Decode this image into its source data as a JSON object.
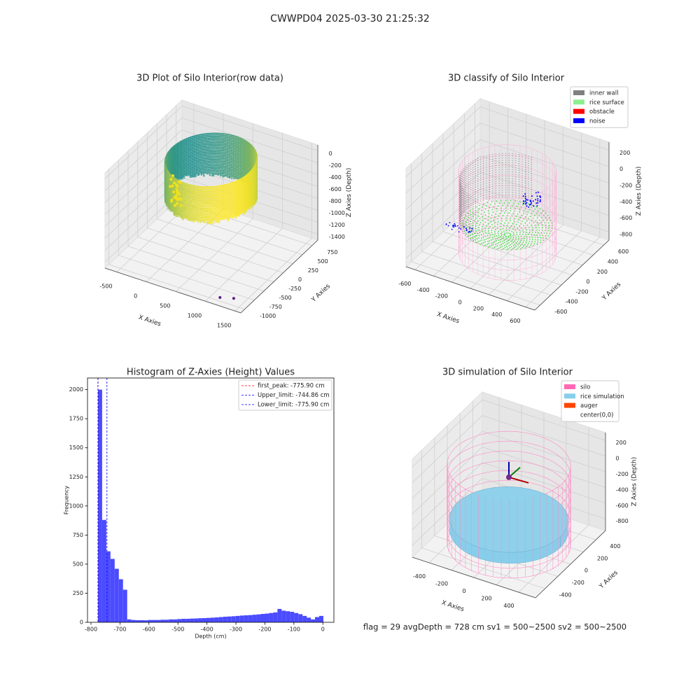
{
  "title": "CWWPD04 2025-03-30 21:25:32",
  "chart_data": [
    {
      "type": "scatter3d",
      "title": "3D Plot of Silo Interior(row data)",
      "xlabel": "X Axies",
      "ylabel": "Y Axies",
      "zlabel": "Z Axies (Depth)",
      "xlim": [
        -700,
        1600
      ],
      "ylim": [
        -1100,
        900
      ],
      "zlim": [
        -1500,
        100
      ],
      "xticks": [
        -500,
        0,
        500,
        1000,
        1500
      ],
      "yticks": [
        -1000,
        -750,
        -500,
        -250,
        0,
        250,
        500,
        750
      ],
      "zticks": [
        -1400,
        -1200,
        -1000,
        -800,
        -600,
        -400,
        -200,
        0
      ]
    },
    {
      "type": "scatter3d",
      "title": "3D classify of Silo Interior",
      "xlabel": "X Axies",
      "ylabel": "Y Axies",
      "zlabel": "Z Axies (Depth)",
      "xlim": [
        -700,
        700
      ],
      "ylim": [
        -700,
        700
      ],
      "zlim": [
        -900,
        300
      ],
      "xticks": [
        -600,
        -400,
        -200,
        0,
        200,
        400,
        600
      ],
      "yticks": [
        -600,
        -400,
        -200,
        0,
        200,
        400,
        600
      ],
      "zticks": [
        -800,
        -600,
        -400,
        -200,
        0,
        200
      ],
      "legend": "upper right",
      "series": [
        {
          "name": "inner wall",
          "color": "#808080"
        },
        {
          "name": "rice surface",
          "color": "#90ee90"
        },
        {
          "name": "obstacle",
          "color": "#ff0000"
        },
        {
          "name": "noise",
          "color": "#0000ff"
        }
      ]
    },
    {
      "type": "histogram",
      "title": "Histogram of Z-Axies (Height) Values",
      "xlabel": "Depth (cm)",
      "ylabel": "Frequency",
      "color": "#4b4bff",
      "xlim": [
        -812,
        38
      ],
      "ylim": [
        0,
        2100
      ],
      "xticks": [
        -800,
        -700,
        -600,
        -500,
        -400,
        -300,
        -200,
        -100,
        0
      ],
      "yticks": [
        0,
        250,
        500,
        750,
        1000,
        1250,
        1500,
        1750,
        2000
      ],
      "bins": [
        -775.9,
        -761.5,
        -747.1,
        -732.7,
        -718.3,
        -703.9,
        -689.5,
        -675.1,
        -660.7,
        -646.3,
        -631.9,
        -617.5,
        -603.1,
        -588.7,
        -574.3,
        -559.9,
        -545.5,
        -531.1,
        -516.7,
        -502.3,
        -487.9,
        -473.5,
        -459.1,
        -444.7,
        -430.3,
        -415.9,
        -401.5,
        -387.1,
        -372.7,
        -358.3,
        -343.9,
        -329.5,
        -315.1,
        -300.7,
        -286.3,
        -271.9,
        -257.5,
        -243.1,
        -228.7,
        -214.3,
        -199.9,
        -185.5,
        -171.1,
        -156.7,
        -142.3,
        -127.9,
        -113.5,
        -99.1,
        -84.7,
        -70.3,
        -55.9,
        -41.5,
        -27.1,
        -12.7,
        1.7
      ],
      "counts": [
        2000,
        880,
        610,
        545,
        460,
        370,
        280,
        25,
        20,
        18,
        18,
        17,
        20,
        20,
        20,
        22,
        22,
        25,
        25,
        28,
        30,
        30,
        32,
        33,
        35,
        36,
        38,
        40,
        42,
        45,
        48,
        50,
        52,
        55,
        58,
        60,
        62,
        65,
        68,
        72,
        75,
        80,
        85,
        115,
        100,
        95,
        90,
        80,
        70,
        55,
        40,
        25,
        45,
        55
      ],
      "legend": "upper right",
      "vlines": [
        {
          "name": "first_peak: -775.90 cm",
          "value": -775.9,
          "color": "#ff0000"
        },
        {
          "name": "Upper_limit: -744.86 cm",
          "value": -744.86,
          "color": "#0000ff"
        },
        {
          "name": "Lower_limit: -775.90 cm",
          "value": -775.9,
          "color": "#0000ff"
        }
      ]
    },
    {
      "type": "scatter3d",
      "title": "3D simulation of Silo Interior",
      "xlabel": "X Axies",
      "ylabel": "Y Axies",
      "zlabel": "Z Axies (Depth)",
      "xlim": [
        -550,
        550
      ],
      "ylim": [
        -550,
        550
      ],
      "zlim": [
        -950,
        300
      ],
      "xticks": [
        -400,
        -200,
        0,
        200,
        400
      ],
      "yticks": [
        -400,
        -200,
        0,
        200,
        400
      ],
      "zticks": [
        -800,
        -600,
        -400,
        -200,
        0,
        200
      ],
      "legend": "upper right",
      "series": [
        {
          "name": "silo",
          "color": "#ff69b4"
        },
        {
          "name": "rice simulation",
          "color": "#87ceeb"
        },
        {
          "name": "auger",
          "color": "#ff4500"
        },
        {
          "name": "center(0,0)",
          "color": "#ffffff"
        }
      ]
    }
  ],
  "footer": "flag = 29  avgDepth = 728 cm  sv1 = 500~2500  sv2 = 500~2500"
}
